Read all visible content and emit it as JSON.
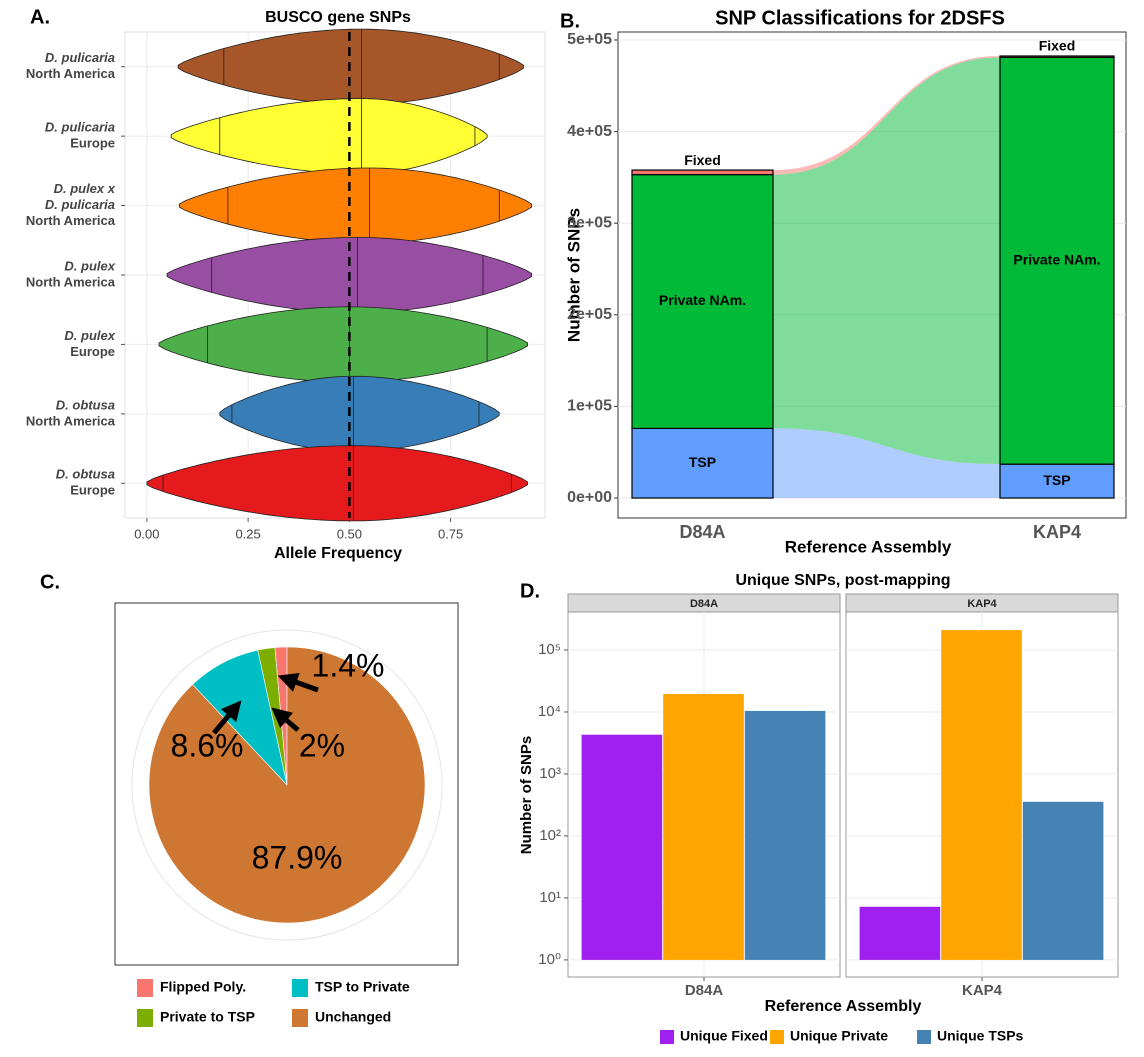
{
  "chart_data": [
    {
      "type": "violin",
      "panel_label": "A.",
      "title": "BUSCO gene SNPs",
      "x_label": "Allele Frequency",
      "categories": [
        [
          "D. pulicaria",
          "North America"
        ],
        [
          "D. pulicaria",
          "Europe"
        ],
        [
          "D. pulex x",
          "D. pulicaria",
          "North America"
        ],
        [
          "D. pulex",
          "North America"
        ],
        [
          "D. pulex",
          "Europe"
        ],
        [
          "D. obtusa",
          "North America"
        ],
        [
          "D. obtusa",
          "Europe"
        ]
      ],
      "violins": [
        {
          "color": "#a65628",
          "min": 0.077,
          "quantiles": [
            0.19,
            0.53,
            0.87
          ],
          "max": 0.93
        },
        {
          "color": "#ffff33",
          "min": 0.06,
          "quantiles": [
            0.18,
            0.53,
            0.81
          ],
          "max": 0.84
        },
        {
          "color": "#ff7f00",
          "min": 0.08,
          "quantiles": [
            0.2,
            0.55,
            0.87
          ],
          "max": 0.95
        },
        {
          "color": "#984ea3",
          "min": 0.05,
          "quantiles": [
            0.16,
            0.52,
            0.83
          ],
          "max": 0.95
        },
        {
          "color": "#4daf4a",
          "min": 0.03,
          "quantiles": [
            0.15,
            0.5,
            0.84
          ],
          "max": 0.94
        },
        {
          "color": "#377eb8",
          "min": 0.18,
          "quantiles": [
            0.21,
            0.51,
            0.82
          ],
          "max": 0.87
        },
        {
          "color": "#e41a1c",
          "min": 0.0,
          "quantiles": [
            0.04,
            0.51,
            0.9
          ],
          "max": 0.94
        }
      ],
      "xlim": [
        -0.054,
        0.983
      ],
      "xticks": [
        {
          "value": 0,
          "label": "0.00"
        },
        {
          "value": 0.25,
          "label": "0.25"
        },
        {
          "value": 0.5,
          "label": "0.50"
        },
        {
          "value": 0.75,
          "label": "0.75"
        }
      ],
      "reference_line": 0.5,
      "grid": true
    },
    {
      "type": "bar",
      "stacked": true,
      "flows": true,
      "panel_label": "B.",
      "title": "SNP Classifications for 2DSFS",
      "x_label": "Reference Assembly",
      "y_label": "Number of SNPs",
      "categories": [
        "D84A",
        "KAP4"
      ],
      "series": [
        {
          "name": "TSP",
          "color": "#619cff",
          "values": [
            76000,
            37000
          ]
        },
        {
          "name": "Private NAm.",
          "color": "#00ba38",
          "values": [
            277000,
            444000
          ]
        },
        {
          "name": "Fixed",
          "color": "#f8766d",
          "values": [
            5000,
            1500
          ]
        }
      ],
      "ylim": [
        -21800,
        508700
      ],
      "yticks": [
        {
          "value": 0,
          "label": "0e+00"
        },
        {
          "value": 100000,
          "label": "1e+05"
        },
        {
          "value": 200000,
          "label": "2e+05"
        },
        {
          "value": 300000,
          "label": "3e+05"
        },
        {
          "value": 400000,
          "label": "4e+05"
        },
        {
          "value": 500000,
          "label": "5e+05"
        }
      ],
      "grid": true
    },
    {
      "type": "pie",
      "panel_label": "C.",
      "categories": [
        "Flipped Poly.",
        "Private to TSP",
        "TSP to Private",
        "Unchanged"
      ],
      "values": [
        1.4,
        2,
        8.6,
        87.9
      ],
      "value_labels": [
        "1.4%",
        "2%",
        "8.6%",
        "87.9%"
      ],
      "colors": [
        "#f8766d",
        "#7cae00",
        "#00bfc4",
        "#cd7733"
      ],
      "legend": "bottom"
    },
    {
      "type": "bar",
      "log_scale": true,
      "facets": true,
      "panel_label": "D.",
      "title": "Unique SNPs, post-mapping",
      "x_label": "Reference Assembly",
      "y_label": "Number of SNPs",
      "categories": [
        "D84A",
        "KAP4"
      ],
      "series": [
        {
          "name": "Unique Fixed",
          "color": "#a020f0",
          "values": [
            4300,
            7.2
          ]
        },
        {
          "name": "Unique Private",
          "color": "#ffa500",
          "values": [
            19500,
            209000
          ]
        },
        {
          "name": "Unique TSPs",
          "color": "#4682b4",
          "values": [
            10400,
            355
          ]
        }
      ],
      "ylim": [
        0.53,
        410000
      ],
      "yticks": [
        {
          "value": 1,
          "label": "10⁰"
        },
        {
          "value": 10,
          "label": "10¹"
        },
        {
          "value": 100,
          "label": "10²"
        },
        {
          "value": 1000,
          "label": "10³"
        },
        {
          "value": 10000,
          "label": "10⁴"
        },
        {
          "value": 100000,
          "label": "10⁵"
        }
      ],
      "grid": true,
      "legend": "bottom"
    }
  ]
}
